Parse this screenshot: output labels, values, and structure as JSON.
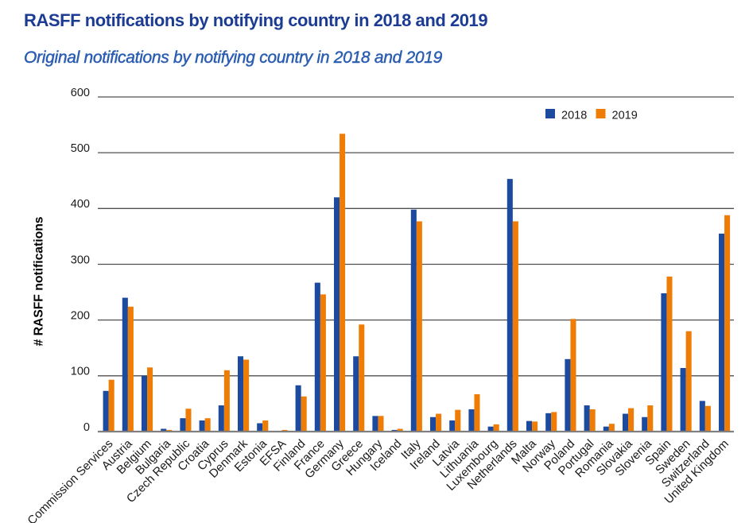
{
  "title": "RASFF notifications by notifying country in 2018 and 2019",
  "subtitle": "Original notifications by notifying country in 2018 and 2019",
  "colors": {
    "title_blue": "#1c3c94",
    "subtitle_blue": "#2b5db1",
    "series_2018_blue": "#1b4a9f",
    "series_2019_orange": "#ef7d05",
    "gridline_gray": "#4f4f4f",
    "axis_line_gray": "#808080",
    "text_black": "#1a1a1a"
  },
  "chart_data": {
    "type": "bar",
    "title": "RASFF notifications by notifying country in 2018 and 2019",
    "subtitle": "Original notifications by notifying country in 2018 and 2019",
    "xlabel": "",
    "ylabel": "# RASFF notifications",
    "ylim": [
      0,
      600
    ],
    "yticks": [
      0,
      100,
      200,
      300,
      400,
      500,
      600
    ],
    "grid": true,
    "legend_position": "top-right inside plot",
    "categories": [
      "Commission Services",
      "Austria",
      "Belgium",
      "Bulgaria",
      "Czech Republic",
      "Croatia",
      "Cyprus",
      "Denmark",
      "Estonia",
      "EFSA",
      "Finland",
      "France",
      "Germany",
      "Greece",
      "Hungary",
      "Iceland",
      "Italy",
      "Ireland",
      "Latvia",
      "Lithuania",
      "Luxembourg",
      "Netherlands",
      "Malta",
      "Norway",
      "Poland",
      "Portugal",
      "Romania",
      "Slovakia",
      "Slovenia",
      "Spain",
      "Sweden",
      "Switzerland",
      "United Kingdom"
    ],
    "series": [
      {
        "name": "2018",
        "color": "#1b4a9f",
        "values": [
          73,
          240,
          100,
          5,
          24,
          20,
          47,
          135,
          15,
          1,
          83,
          267,
          420,
          135,
          28,
          3,
          398,
          26,
          20,
          40,
          9,
          453,
          19,
          33,
          130,
          47,
          9,
          32,
          26,
          248,
          114,
          55,
          355
        ]
      },
      {
        "name": "2019",
        "color": "#ef7d05",
        "values": [
          93,
          224,
          115,
          3,
          41,
          24,
          110,
          129,
          20,
          3,
          63,
          246,
          534,
          192,
          28,
          5,
          377,
          32,
          39,
          67,
          13,
          377,
          18,
          35,
          202,
          40,
          14,
          42,
          47,
          278,
          180,
          46,
          388
        ]
      }
    ]
  }
}
